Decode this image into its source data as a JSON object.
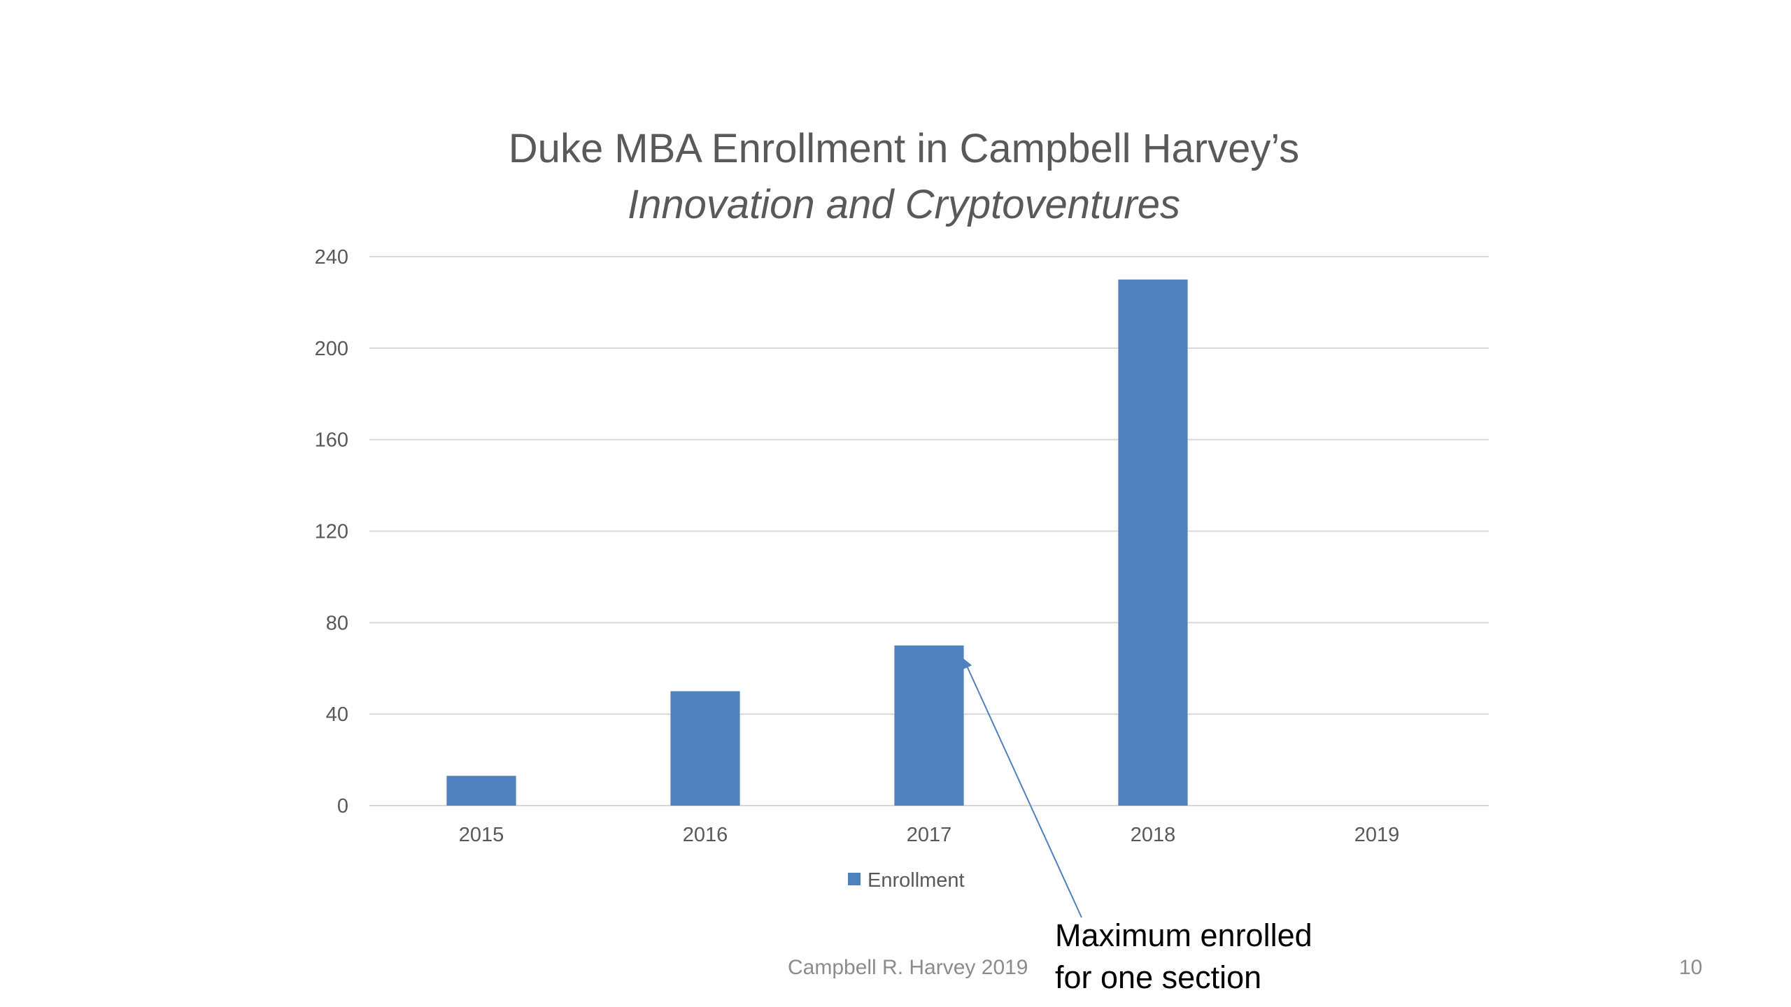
{
  "chart_data": {
    "type": "bar",
    "title": "Duke MBA Enrollment in Campbell Harvey’s",
    "subtitle": "Innovation and Cryptoventures",
    "categories": [
      "2015",
      "2016",
      "2017",
      "2018",
      "2019"
    ],
    "series": [
      {
        "name": "Enrollment",
        "values": [
          13,
          50,
          70,
          230,
          0
        ],
        "color": "#4f81bd"
      }
    ],
    "ylim": [
      0,
      240
    ],
    "yticks": [
      0,
      40,
      80,
      120,
      160,
      200,
      240
    ],
    "xlabel": "",
    "ylabel": "",
    "grid": true,
    "legend_position": "bottom",
    "annotation": {
      "lines": [
        "Maximum enrolled",
        "for one section"
      ],
      "points_to_category": "2017"
    }
  },
  "footer": {
    "author": "Campbell R. Harvey 2019",
    "page_number": "10"
  },
  "colors": {
    "bar": "#4f81bd",
    "gridline": "#d9d9d9",
    "text": "#595959",
    "arrow": "#4f81bd"
  }
}
